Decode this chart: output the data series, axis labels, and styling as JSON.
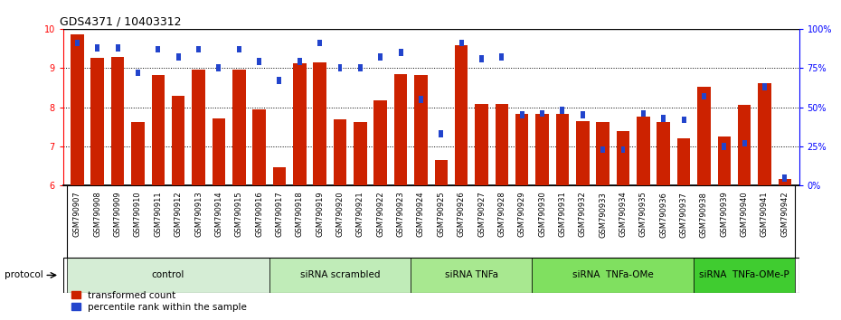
{
  "title": "GDS4371 / 10403312",
  "samples": [
    "GSM790907",
    "GSM790908",
    "GSM790909",
    "GSM790910",
    "GSM790911",
    "GSM790912",
    "GSM790913",
    "GSM790914",
    "GSM790915",
    "GSM790916",
    "GSM790917",
    "GSM790918",
    "GSM790919",
    "GSM790920",
    "GSM790921",
    "GSM790922",
    "GSM790923",
    "GSM790924",
    "GSM790925",
    "GSM790926",
    "GSM790927",
    "GSM790928",
    "GSM790929",
    "GSM790930",
    "GSM790931",
    "GSM790932",
    "GSM790933",
    "GSM790934",
    "GSM790935",
    "GSM790936",
    "GSM790937",
    "GSM790938",
    "GSM790939",
    "GSM790940",
    "GSM790941",
    "GSM790942"
  ],
  "red_values": [
    9.85,
    9.27,
    9.28,
    7.62,
    8.82,
    8.28,
    8.97,
    7.72,
    8.95,
    7.95,
    6.48,
    9.13,
    9.15,
    7.68,
    7.62,
    8.18,
    8.85,
    8.82,
    6.65,
    9.58,
    8.08,
    8.08,
    7.82,
    7.82,
    7.82,
    7.65,
    7.62,
    7.38,
    7.75,
    7.62,
    7.2,
    8.52,
    7.25,
    8.05,
    8.62,
    6.18
  ],
  "blue_percentiles": [
    91,
    88,
    88,
    72,
    87,
    82,
    87,
    75,
    87,
    79,
    67,
    79,
    91,
    75,
    75,
    82,
    85,
    55,
    33,
    91,
    81,
    82,
    45,
    46,
    48,
    45,
    23,
    23,
    46,
    43,
    42,
    57,
    25,
    27,
    63,
    5
  ],
  "groups": [
    {
      "label": "control",
      "start": 0,
      "end": 9,
      "color": "#d5edd5"
    },
    {
      "label": "siRNA scrambled",
      "start": 10,
      "end": 16,
      "color": "#c0ecb8"
    },
    {
      "label": "siRNA TNFa",
      "start": 17,
      "end": 22,
      "color": "#a8e890"
    },
    {
      "label": "siRNA  TNFa-OMe",
      "start": 23,
      "end": 30,
      "color": "#80e060"
    },
    {
      "label": "siRNA  TNFa-OMe-P",
      "start": 31,
      "end": 35,
      "color": "#40cc30"
    }
  ],
  "ylim_left": [
    6,
    10
  ],
  "ylim_right": [
    0,
    100
  ],
  "yticks_left": [
    6,
    7,
    8,
    9,
    10
  ],
  "yticks_right": [
    0,
    25,
    50,
    75,
    100
  ],
  "ytick_labels_right": [
    "0%",
    "25%",
    "50%",
    "75%",
    "100%"
  ],
  "bar_color_red": "#cc2200",
  "bar_color_blue": "#2244cc",
  "bar_width": 0.65,
  "title_fontsize": 9,
  "tick_fontsize": 7,
  "legend_red": "transformed count",
  "legend_blue": "percentile rank within the sample",
  "protocol_label": "protocol"
}
